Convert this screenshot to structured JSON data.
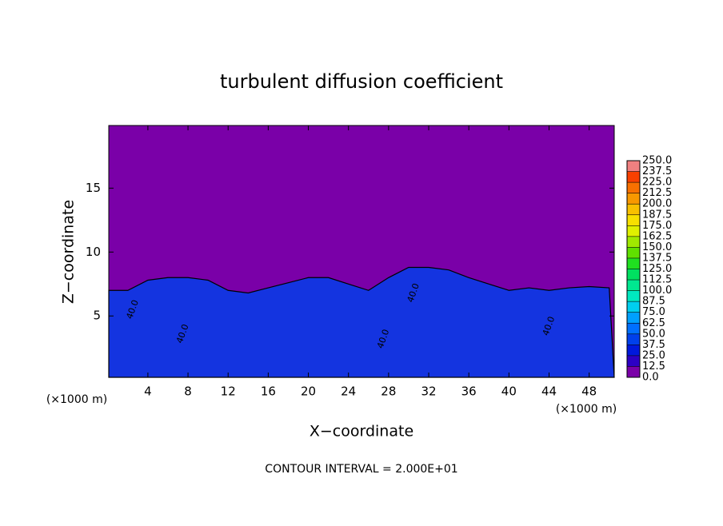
{
  "chart_data": {
    "type": "contour",
    "title": "turbulent diffusion coefficient",
    "xlabel": "X−coordinate",
    "ylabel": "Z−coordinate",
    "x_unit": "(×1000 m)",
    "footer": "CONTOUR INTERVAL = 2.000E+01",
    "xlim": [
      0.1,
      50.5
    ],
    "ylim": [
      0.2,
      19.9
    ],
    "xticks": [
      4,
      8,
      12,
      16,
      20,
      24,
      28,
      32,
      36,
      40,
      44,
      48
    ],
    "yticks": [
      5,
      10,
      15
    ],
    "background_color": "#7a00a8",
    "layer_top": {
      "color": "#1434e0",
      "x": [
        0,
        2,
        4,
        6,
        8,
        10,
        12,
        14,
        16,
        18,
        20,
        22,
        24,
        26,
        28,
        30,
        32,
        34,
        36,
        38,
        40,
        42,
        44,
        46,
        48,
        50
      ],
      "z": [
        7,
        7,
        7.8,
        8,
        8,
        7.8,
        7,
        6.8,
        7.2,
        7.6,
        8,
        8,
        7.5,
        7,
        8,
        8.8,
        8.8,
        8.6,
        8,
        7.5,
        7,
        7.2,
        7,
        7.2,
        7.3,
        7.2
      ]
    },
    "contour_labels": [
      {
        "text": "40.0",
        "x": 2.5,
        "z": 5.5
      },
      {
        "text": "40.0",
        "x": 7.5,
        "z": 3.6
      },
      {
        "text": "40.0",
        "x": 27.5,
        "z": 3.2
      },
      {
        "text": "40.0",
        "x": 30.5,
        "z": 6.8
      },
      {
        "text": "40.0",
        "x": 44,
        "z": 4.2
      }
    ],
    "colorbar": {
      "levels": [
        {
          "value": 0,
          "label": "0.0"
        },
        12.5,
        {
          "value": 25,
          "label": "25.0"
        },
        37.5,
        {
          "value": 50,
          "label": "50.0"
        },
        62.5,
        {
          "value": 75,
          "label": "75.0"
        },
        87.5,
        {
          "value": 100,
          "label": "100.0"
        },
        112.5,
        {
          "value": 125,
          "label": "125.0"
        },
        137.5,
        {
          "value": 150,
          "label": "150.0"
        },
        162.5,
        {
          "value": 175,
          "label": "175.0"
        },
        187.5,
        {
          "value": 200,
          "label": "200.0"
        },
        212.5,
        {
          "value": 225,
          "label": "225.0"
        },
        237.5,
        {
          "value": 250,
          "label": "250.0"
        }
      ],
      "colors": [
        "#7a00a8",
        "#2c00c4",
        "#0018dc",
        "#0040ec",
        "#0070ff",
        "#00a0ff",
        "#00cff0",
        "#00e8c0",
        "#00e890",
        "#00e060",
        "#20e020",
        "#60e000",
        "#a0e800",
        "#e0f000",
        "#f8e000",
        "#f8c000",
        "#f89800",
        "#f87000",
        "#f84000",
        "#f08080"
      ]
    }
  }
}
